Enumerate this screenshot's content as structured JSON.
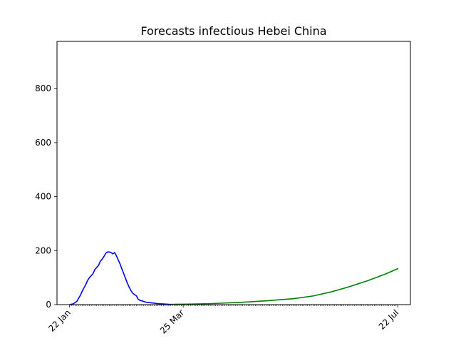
{
  "chart_data": {
    "type": "line",
    "title": "Forecasts infectious Hebei China",
    "xlabel": "",
    "ylabel": "",
    "x_axis": {
      "type": "date",
      "start": "2020-01-22",
      "end": "2020-07-22",
      "range": [
        "2020-01-15",
        "2020-07-29"
      ],
      "tick_labels": [
        {
          "date": "2020-01-22",
          "label": "22 Jan"
        },
        {
          "date": "2020-03-25",
          "label": "25 Mar"
        },
        {
          "date": "2020-07-22",
          "label": "22 Jul"
        }
      ],
      "minor_ticks": "daily"
    },
    "ylim": [
      0,
      975
    ],
    "y_ticks": [
      0,
      200,
      400,
      600,
      800
    ],
    "grid": false,
    "legend": "none",
    "series": [
      {
        "color": "#0000ff",
        "points": [
          {
            "x": "2020-01-22",
            "y": 0
          },
          {
            "x": "2020-01-24",
            "y": 3
          },
          {
            "x": "2020-01-26",
            "y": 12
          },
          {
            "x": "2020-01-28",
            "y": 35
          },
          {
            "x": "2020-01-29",
            "y": 50
          },
          {
            "x": "2020-01-31",
            "y": 75
          },
          {
            "x": "2020-02-01",
            "y": 90
          },
          {
            "x": "2020-02-02",
            "y": 100
          },
          {
            "x": "2020-02-04",
            "y": 115
          },
          {
            "x": "2020-02-05",
            "y": 130
          },
          {
            "x": "2020-02-07",
            "y": 145
          },
          {
            "x": "2020-02-08",
            "y": 160
          },
          {
            "x": "2020-02-09",
            "y": 168
          },
          {
            "x": "2020-02-10",
            "y": 178
          },
          {
            "x": "2020-02-11",
            "y": 190
          },
          {
            "x": "2020-02-12",
            "y": 195
          },
          {
            "x": "2020-02-13",
            "y": 195
          },
          {
            "x": "2020-02-14",
            "y": 193
          },
          {
            "x": "2020-02-15",
            "y": 188
          },
          {
            "x": "2020-02-16",
            "y": 193
          },
          {
            "x": "2020-02-17",
            "y": 180
          },
          {
            "x": "2020-02-18",
            "y": 165
          },
          {
            "x": "2020-02-19",
            "y": 150
          },
          {
            "x": "2020-02-20",
            "y": 132
          },
          {
            "x": "2020-02-21",
            "y": 115
          },
          {
            "x": "2020-02-22",
            "y": 97
          },
          {
            "x": "2020-02-23",
            "y": 80
          },
          {
            "x": "2020-02-24",
            "y": 65
          },
          {
            "x": "2020-02-25",
            "y": 52
          },
          {
            "x": "2020-02-26",
            "y": 42
          },
          {
            "x": "2020-02-27",
            "y": 37
          },
          {
            "x": "2020-02-28",
            "y": 33
          },
          {
            "x": "2020-02-29",
            "y": 20
          },
          {
            "x": "2020-03-01",
            "y": 16
          },
          {
            "x": "2020-03-03",
            "y": 12
          },
          {
            "x": "2020-03-05",
            "y": 8
          },
          {
            "x": "2020-03-08",
            "y": 6
          },
          {
            "x": "2020-03-12",
            "y": 3
          },
          {
            "x": "2020-03-18",
            "y": 1
          },
          {
            "x": "2020-03-25",
            "y": 1
          }
        ]
      },
      {
        "color": "#008000",
        "points": [
          {
            "x": "2020-03-19",
            "y": 1
          },
          {
            "x": "2020-03-28",
            "y": 2
          },
          {
            "x": "2020-04-10",
            "y": 4
          },
          {
            "x": "2020-04-25",
            "y": 8
          },
          {
            "x": "2020-05-10",
            "y": 14
          },
          {
            "x": "2020-05-25",
            "y": 22
          },
          {
            "x": "2020-06-05",
            "y": 32
          },
          {
            "x": "2020-06-15",
            "y": 47
          },
          {
            "x": "2020-06-25",
            "y": 66
          },
          {
            "x": "2020-07-05",
            "y": 88
          },
          {
            "x": "2020-07-15",
            "y": 113
          },
          {
            "x": "2020-07-22",
            "y": 133
          }
        ]
      }
    ]
  }
}
